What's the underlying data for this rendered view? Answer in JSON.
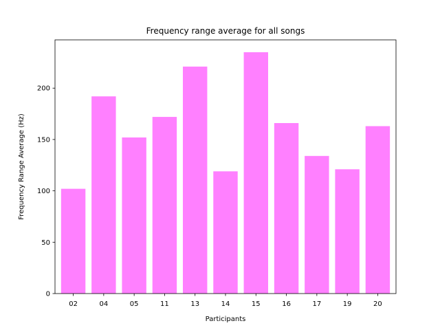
{
  "chart_data": {
    "type": "bar",
    "title": "Frequency range average for all songs",
    "xlabel": "Participants",
    "ylabel": "Frequency Range Average (Hz)",
    "categories": [
      "02",
      "04",
      "05",
      "11",
      "13",
      "14",
      "15",
      "16",
      "17",
      "19",
      "20"
    ],
    "values": [
      102,
      192,
      152,
      172,
      221,
      119,
      235,
      166,
      134,
      121,
      163
    ],
    "ylim": [
      0,
      247
    ],
    "yticks": [
      0,
      50,
      100,
      150,
      200
    ],
    "grid": false,
    "bar_color": "#ff80ff"
  }
}
